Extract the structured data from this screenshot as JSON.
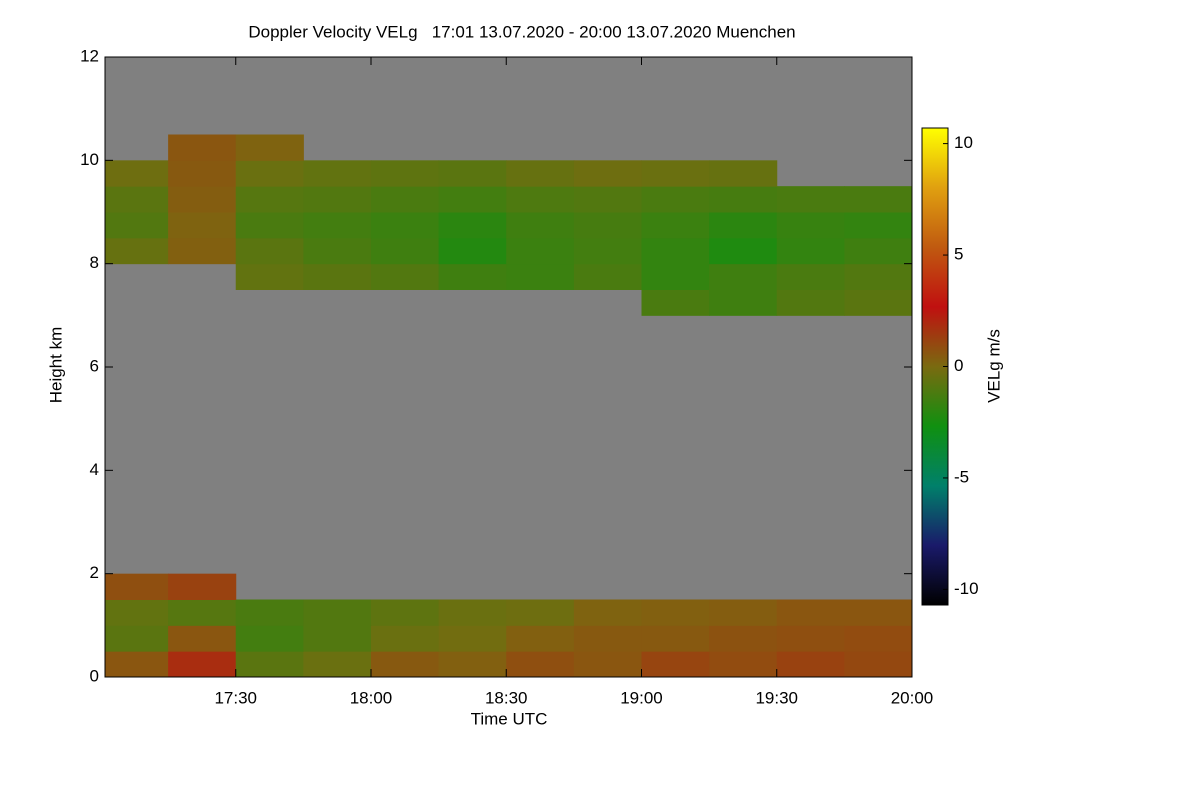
{
  "chart_data": {
    "type": "heatmap",
    "title": "Doppler Velocity VELg   17:01 13.07.2020 - 20:00 13.07.2020 Muenchen",
    "xlabel": "Time UTC",
    "ylabel": "Height km",
    "colorbar_label": "VELg m/s",
    "xlim": [
      1021,
      1200
    ],
    "ylim": [
      0,
      12
    ],
    "xticks": [
      {
        "value": 1050,
        "label": "17:30"
      },
      {
        "value": 1080,
        "label": "18:00"
      },
      {
        "value": 1110,
        "label": "18:30"
      },
      {
        "value": 1140,
        "label": "19:00"
      },
      {
        "value": 1170,
        "label": "19:30"
      },
      {
        "value": 1200,
        "label": "20:00"
      }
    ],
    "yticks": [
      0,
      2,
      4,
      6,
      8,
      10,
      12
    ],
    "xbins": [
      1021,
      1035,
      1050,
      1065,
      1080,
      1095,
      1110,
      1125,
      1140,
      1155,
      1170,
      1185,
      1200
    ],
    "ybins": [
      0,
      0.5,
      1,
      1.5,
      2,
      2.5,
      3,
      3.5,
      4,
      4.5,
      5,
      5.5,
      6,
      6.5,
      7,
      7.5,
      8,
      8.5,
      9,
      9.5,
      10,
      10.5,
      11,
      11.5,
      12
    ],
    "z": [
      [
        0.6,
        1.8,
        -0.8,
        -0.4,
        0.5,
        0.3,
        0.8,
        0.6,
        1.1,
        0.9,
        1.2,
        1.0
      ],
      [
        -0.8,
        0.6,
        -1.4,
        -1.0,
        -0.4,
        -0.2,
        0.3,
        0.5,
        0.5,
        0.7,
        0.8,
        0.9
      ],
      [
        -0.6,
        -0.9,
        -1.2,
        -1.0,
        -0.7,
        -0.4,
        -0.3,
        0.2,
        0.3,
        0.4,
        0.6,
        0.6
      ],
      [
        0.8,
        1.2,
        null,
        null,
        null,
        null,
        null,
        null,
        null,
        null,
        null,
        null
      ],
      [
        null,
        null,
        null,
        null,
        null,
        null,
        null,
        null,
        null,
        null,
        null,
        null
      ],
      [
        null,
        null,
        null,
        null,
        null,
        null,
        null,
        null,
        null,
        null,
        null,
        null
      ],
      [
        null,
        null,
        null,
        null,
        null,
        null,
        null,
        null,
        null,
        null,
        null,
        null
      ],
      [
        null,
        null,
        null,
        null,
        null,
        null,
        null,
        null,
        null,
        null,
        null,
        null
      ],
      [
        null,
        null,
        null,
        null,
        null,
        null,
        null,
        null,
        null,
        null,
        null,
        null
      ],
      [
        null,
        null,
        null,
        null,
        null,
        null,
        null,
        null,
        null,
        null,
        null,
        null
      ],
      [
        null,
        null,
        null,
        null,
        null,
        null,
        null,
        null,
        null,
        null,
        null,
        null
      ],
      [
        null,
        null,
        null,
        null,
        null,
        null,
        null,
        null,
        null,
        null,
        null,
        null
      ],
      [
        null,
        null,
        null,
        null,
        null,
        null,
        null,
        null,
        null,
        null,
        null,
        null
      ],
      [
        null,
        null,
        null,
        null,
        null,
        null,
        null,
        null,
        null,
        null,
        null,
        null
      ],
      [
        null,
        null,
        null,
        null,
        null,
        null,
        null,
        null,
        -1.2,
        -1.5,
        -1.0,
        -0.8
      ],
      [
        null,
        null,
        -0.6,
        -0.8,
        -1.0,
        -1.5,
        -1.6,
        -1.2,
        -1.8,
        -1.5,
        -1.2,
        -1.0
      ],
      [
        -0.5,
        0.3,
        -0.8,
        -1.2,
        -1.5,
        -2.2,
        -1.6,
        -1.4,
        -1.8,
        -2.3,
        -1.8,
        -1.5
      ],
      [
        -1.0,
        0.2,
        -1.2,
        -1.4,
        -1.6,
        -2.0,
        -1.5,
        -1.3,
        -1.6,
        -2.0,
        -1.7,
        -1.8
      ],
      [
        -0.8,
        0.4,
        -0.9,
        -1.0,
        -1.2,
        -1.4,
        -1.1,
        -1.0,
        -1.2,
        -1.3,
        -1.2,
        -1.2
      ],
      [
        -0.3,
        0.5,
        -0.4,
        -0.6,
        -0.7,
        -0.8,
        -0.5,
        -0.3,
        -0.4,
        -0.5,
        null,
        null
      ],
      [
        null,
        0.6,
        0.2,
        null,
        null,
        null,
        null,
        null,
        null,
        null,
        null,
        null
      ],
      [
        null,
        null,
        null,
        null,
        null,
        null,
        null,
        null,
        null,
        null,
        null,
        null
      ],
      [
        null,
        null,
        null,
        null,
        null,
        null,
        null,
        null,
        null,
        null,
        null,
        null
      ],
      [
        null,
        null,
        null,
        null,
        null,
        null,
        null,
        null,
        null,
        null,
        null,
        null
      ]
    ],
    "clim": [
      -10.7,
      10.7
    ],
    "cticks": [
      -10,
      -5,
      0,
      5,
      10
    ],
    "colormap": [
      "#000000",
      "#1a1a6a",
      "#00806a",
      "#109010",
      "#7a6a10",
      "#c01010",
      "#c05a10",
      "#e0a010",
      "#ffff00"
    ],
    "background": "#808080"
  }
}
